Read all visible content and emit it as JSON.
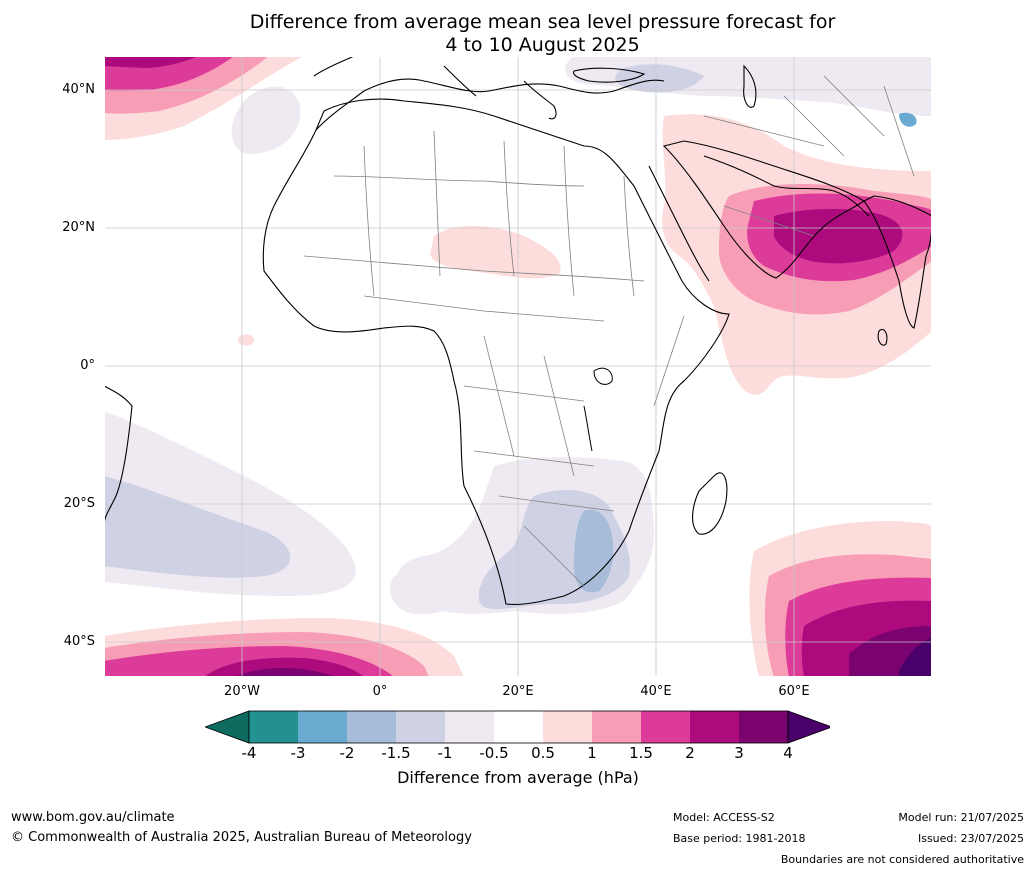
{
  "title": {
    "line1": "Difference from average mean sea level pressure forecast for",
    "line2": "4 to 10 August 2025"
  },
  "map": {
    "lat_labels": [
      "40°N",
      "20°N",
      "0°",
      "20°S",
      "40°S"
    ],
    "lon_labels": [
      "20°W",
      "0°",
      "20°E",
      "40°E",
      "60°E"
    ]
  },
  "colorbar": {
    "ticks": [
      "-4",
      "-3",
      "-2",
      "-1.5",
      "-1",
      "-0.5",
      "0.5",
      "1",
      "1.5",
      "2",
      "3",
      "4"
    ],
    "colors": {
      "below_min": "#0e6b5f",
      "bins": [
        "#22918f",
        "#6aaad1",
        "#a6bcd8",
        "#cfd1e4",
        "#efeaf2",
        "#ffffff",
        "#fddcdc",
        "#f89db6",
        "#dd3b9a",
        "#ad0a7d",
        "#7a036f"
      ],
      "above_max": "#49006a"
    },
    "title": "Difference from average (hPa)"
  },
  "footer": {
    "url": "www.bom.gov.au/climate",
    "copyright": "© Commonwealth of Australia 2025, Australian Bureau of Meteorology",
    "model": "Model: ACCESS-S2",
    "base_period": "Base period: 1981-2018",
    "model_run": "Model run: 21/07/2025",
    "issued": "Issued: 23/07/2025",
    "disclaimer": "Boundaries are not considered authoritative"
  }
}
